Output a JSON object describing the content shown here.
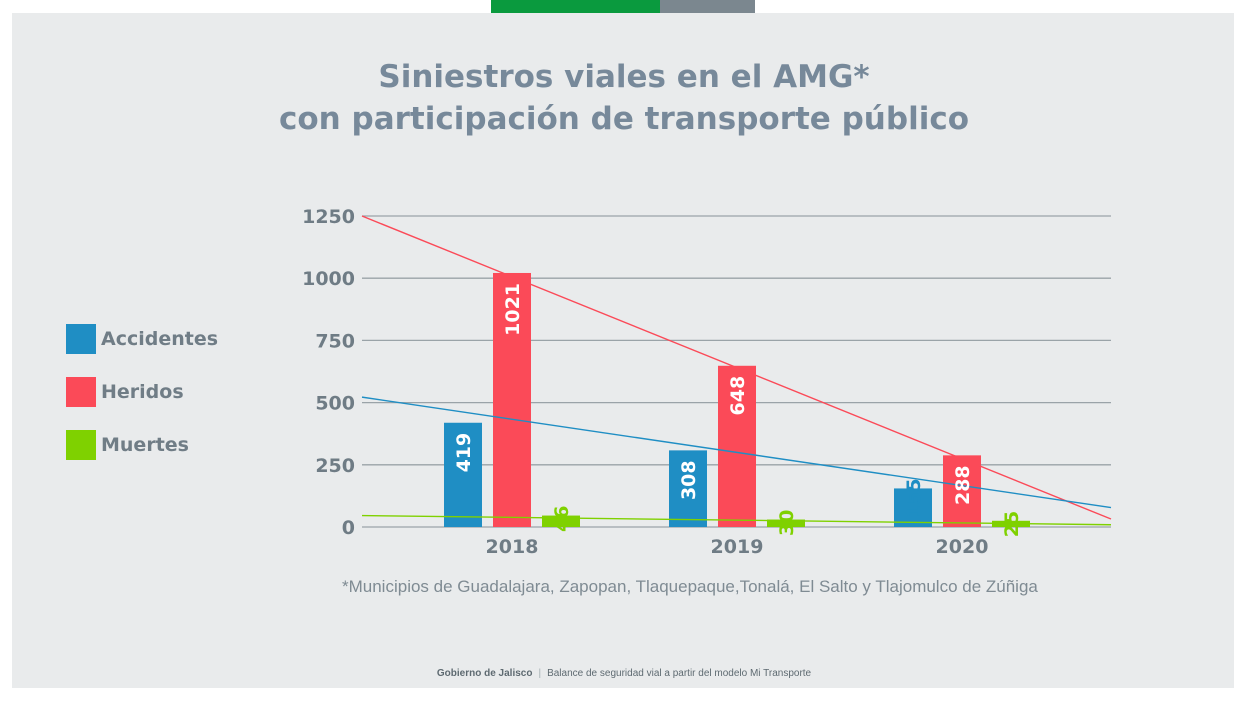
{
  "title_line1": "Siniestros viales en el AMG*",
  "title_line2": "con participación de transporte público",
  "legend": [
    {
      "label": "Accidentes",
      "color": "#1f8ec4"
    },
    {
      "label": "Heridos",
      "color": "#fb4a58"
    },
    {
      "label": "Muertes",
      "color": "#7fd100"
    }
  ],
  "footnote": "*Municipios de Guadalajara, Zapopan, Tlaquepaque,Tonalá, El Salto y Tlajomulco de Zúñiga",
  "footer": {
    "org": "Gobierno de Jalisco",
    "text": "Balance de seguridad vial a partir del modelo Mi Transporte"
  },
  "chart_data": {
    "type": "bar",
    "title": "Siniestros viales en el AMG* con participación de transporte público",
    "categories": [
      "2018",
      "2019",
      "2020"
    ],
    "series": [
      {
        "name": "Accidentes",
        "values": [
          419,
          308,
          155
        ],
        "color": "#1f8ec4"
      },
      {
        "name": "Heridos",
        "values": [
          1021,
          648,
          288
        ],
        "color": "#fb4a58"
      },
      {
        "name": "Muertes",
        "values": [
          46,
          30,
          25
        ],
        "color": "#7fd100"
      }
    ],
    "y_ticks": [
      "0",
      "250",
      "500",
      "750",
      "1000",
      "1250"
    ],
    "ylim": [
      0,
      1250
    ],
    "grid": true,
    "legend_position": "left",
    "trend_lines": [
      {
        "series": "Heridos",
        "start": 1250,
        "end": 32,
        "color": "#fb4a58"
      },
      {
        "series": "Accidentes",
        "start": 522,
        "end": 78,
        "color": "#1f8ec4"
      },
      {
        "series": "Muertes",
        "start": 46,
        "end": 9,
        "color": "#7fd100"
      }
    ]
  }
}
